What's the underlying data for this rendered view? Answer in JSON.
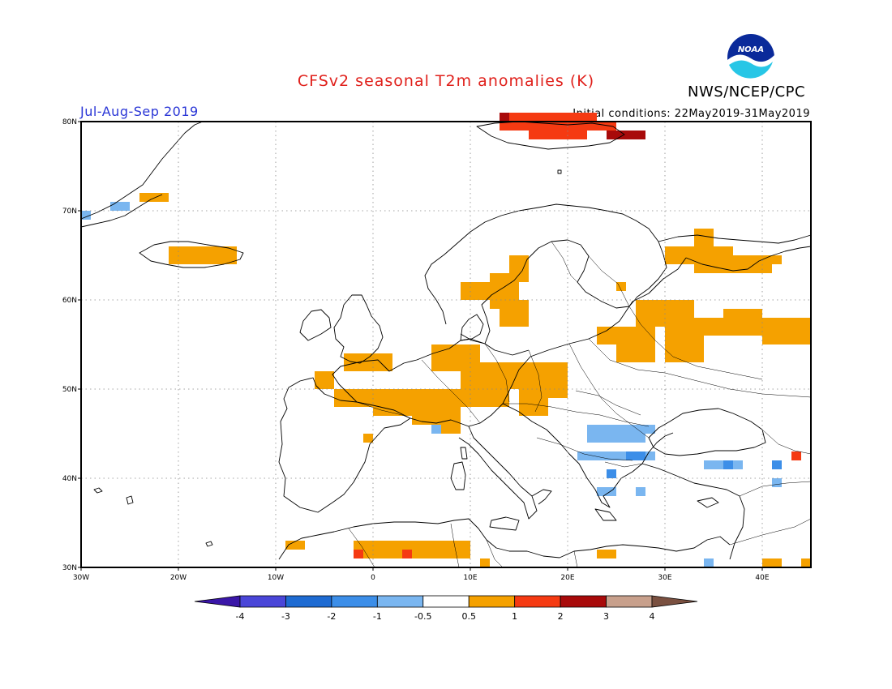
{
  "title": "CFSv2 seasonal T2m anomalies (K)",
  "organization": "NWS/NCEP/CPC",
  "logo_text": "NOAA",
  "period": "Jul-Aug-Sep 2019",
  "initial_conditions": "Initial conditions: 22May2019-31May2019",
  "axes": {
    "x_ticks": [
      {
        "lon": -30,
        "label": "30W"
      },
      {
        "lon": -20,
        "label": "20W"
      },
      {
        "lon": -10,
        "label": "10W"
      },
      {
        "lon": 0,
        "label": "0"
      },
      {
        "lon": 10,
        "label": "10E"
      },
      {
        "lon": 20,
        "label": "20E"
      },
      {
        "lon": 30,
        "label": "30E"
      },
      {
        "lon": 40,
        "label": "40E"
      }
    ],
    "y_ticks": [
      {
        "lat": 30,
        "label": "30N"
      },
      {
        "lat": 40,
        "label": "40N"
      },
      {
        "lat": 50,
        "label": "50N"
      },
      {
        "lat": 60,
        "label": "60N"
      },
      {
        "lat": 70,
        "label": "70N"
      },
      {
        "lat": 80,
        "label": "80N"
      }
    ],
    "lon_range": [
      -30,
      45
    ],
    "lat_range": [
      30,
      80
    ],
    "grid": "dotted"
  },
  "colorbar": {
    "colors": [
      "#3a16a8",
      "#4a46d8",
      "#1e6bd2",
      "#3c8ee8",
      "#7ab6f0",
      "#ffffff",
      "#f5a100",
      "#f53a12",
      "#a80a0a",
      "#c8a08c",
      "#7a5040"
    ],
    "labels": [
      "-4",
      "-3",
      "-2",
      "-1",
      "-0.5",
      "0.5",
      "1",
      "2",
      "3",
      "4"
    ]
  },
  "anomaly_regions": [
    {
      "level": "0.5 to 1",
      "color": "#f5a100",
      "cells": [
        [
          -3,
          52,
          5,
          2
        ],
        [
          -6,
          50,
          2,
          2
        ],
        [
          -4,
          48,
          8,
          2
        ],
        [
          0,
          47,
          4,
          1
        ],
        [
          4,
          46,
          5,
          4
        ],
        [
          6,
          52,
          5,
          3
        ],
        [
          9,
          48,
          5,
          4
        ],
        [
          11,
          50,
          4,
          3
        ],
        [
          15,
          47,
          3,
          6
        ],
        [
          17,
          49,
          3,
          4
        ],
        [
          6,
          45,
          3,
          1
        ],
        [
          -1,
          44,
          1,
          1
        ],
        [
          9,
          60,
          3,
          2
        ],
        [
          12,
          59,
          3,
          4
        ],
        [
          13,
          57,
          3,
          3
        ],
        [
          14,
          62,
          2,
          3
        ],
        [
          23,
          55,
          6,
          2
        ],
        [
          25,
          53,
          4,
          2
        ],
        [
          27,
          57,
          6,
          3
        ],
        [
          30,
          53,
          4,
          4
        ],
        [
          32,
          56,
          4,
          2
        ],
        [
          36,
          56,
          4,
          3
        ],
        [
          40,
          55,
          5,
          3
        ],
        [
          30,
          64,
          4,
          2
        ],
        [
          33,
          63,
          8,
          2
        ],
        [
          39,
          64,
          3,
          1
        ],
        [
          34,
          65,
          3,
          1
        ],
        [
          33,
          66,
          2,
          2
        ],
        [
          -24,
          71,
          3,
          1
        ],
        [
          -21,
          64,
          7,
          2
        ],
        [
          -9,
          32,
          2,
          1
        ],
        [
          -2,
          31,
          9,
          2
        ],
        [
          5,
          31,
          5,
          2
        ],
        [
          11,
          30,
          1,
          1
        ],
        [
          23,
          31,
          2,
          1
        ],
        [
          40,
          30,
          2,
          1
        ],
        [
          44,
          30,
          1,
          1
        ],
        [
          25,
          61,
          1,
          1
        ]
      ]
    },
    {
      "level": "1 to 2",
      "color": "#f53a12",
      "cells": [
        [
          13,
          79,
          10,
          2
        ],
        [
          16,
          78,
          6,
          1
        ],
        [
          22,
          79,
          3,
          1
        ],
        [
          -2,
          31,
          1,
          1
        ],
        [
          3,
          31,
          1,
          1
        ],
        [
          43,
          42,
          1,
          1
        ]
      ]
    },
    {
      "level": "2 to 3",
      "color": "#a80a0a",
      "cells": [
        [
          24,
          78,
          4,
          1
        ],
        [
          13,
          80,
          1,
          1
        ]
      ]
    },
    {
      "level": "-0.5 to -1",
      "color": "#7ab6f0",
      "cells": [
        [
          -27,
          70,
          2,
          1
        ],
        [
          22,
          44,
          6,
          2
        ],
        [
          21,
          42,
          8,
          1
        ],
        [
          28,
          45,
          1,
          1
        ],
        [
          34,
          41,
          2,
          1
        ],
        [
          37,
          41,
          1,
          1
        ],
        [
          41,
          39,
          1,
          1
        ],
        [
          23,
          38,
          2,
          1
        ],
        [
          27,
          38,
          1,
          1
        ],
        [
          34,
          30,
          1,
          1
        ],
        [
          6,
          45,
          1,
          1
        ],
        [
          -30,
          69,
          1,
          1
        ]
      ]
    },
    {
      "level": "-1 to -2",
      "color": "#3c8ee8",
      "cells": [
        [
          26,
          42,
          2,
          1
        ],
        [
          36,
          41,
          1,
          1
        ],
        [
          41,
          41,
          1,
          1
        ],
        [
          24,
          40,
          1,
          1
        ]
      ]
    }
  ]
}
